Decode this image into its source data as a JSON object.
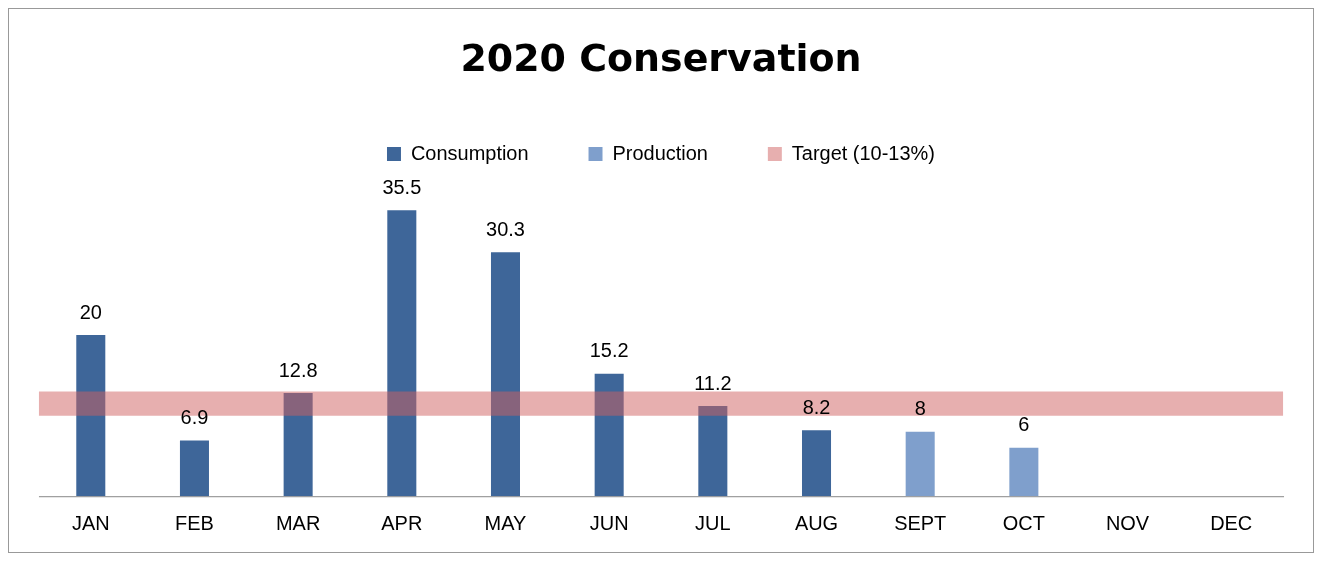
{
  "chart_data": {
    "type": "bar",
    "title": "2020 Conservation",
    "categories": [
      "JAN",
      "FEB",
      "MAR",
      "APR",
      "MAY",
      "JUN",
      "JUL",
      "AUG",
      "SEPT",
      "OCT",
      "NOV",
      "DEC"
    ],
    "series": [
      {
        "name": "Consumption",
        "color": "#3e6699",
        "values": [
          20,
          6.9,
          12.8,
          35.5,
          30.3,
          15.2,
          11.2,
          8.2,
          null,
          null,
          null,
          null
        ]
      },
      {
        "name": "Production",
        "color": "#7f9fcc",
        "values": [
          null,
          null,
          null,
          null,
          null,
          null,
          null,
          null,
          8,
          6,
          null,
          null
        ]
      }
    ],
    "bands": [
      {
        "axis": "y",
        "from": 10,
        "to": 13,
        "label": "Target (10-13%)",
        "color": "#cf5f5f"
      }
    ],
    "data_labels": true,
    "legend": "top",
    "grid": false
  }
}
